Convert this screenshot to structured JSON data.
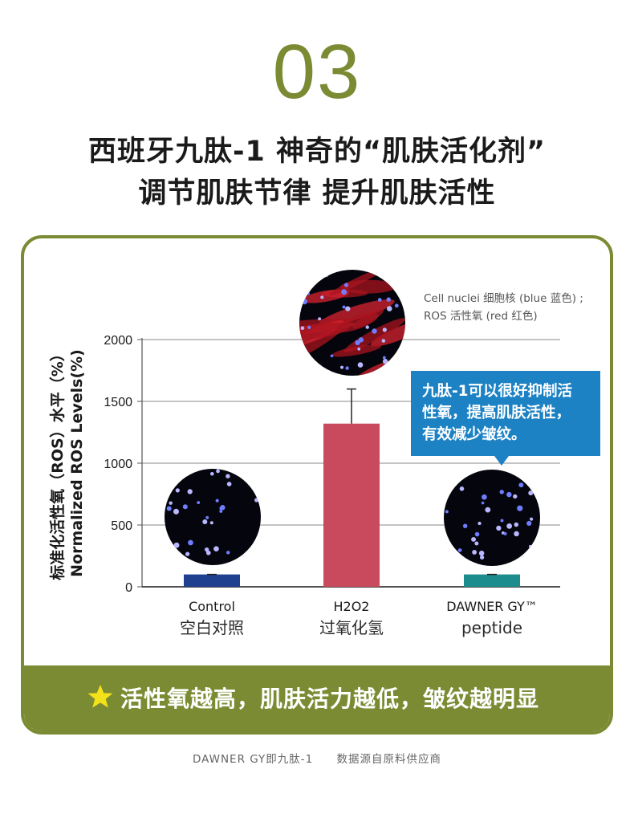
{
  "header": {
    "number": "03",
    "title_line1": "西班牙九肽-1  神奇的“肌肤活化剂”",
    "title_line2": "调节肌肤节律  提升肌肤活性"
  },
  "legend": {
    "line1": "Cell nuclei 细胞核 (blue 蓝色) ;",
    "line2": "ROS 活性氧 (red 红色)"
  },
  "callout": {
    "line1": "九肽-1可以很好抑制活",
    "line2": "性氧，提高肌肤活性，",
    "line3": "有效减少皱纹。"
  },
  "footer_note": "活性氧越高，肌肤活力越低，皱纹越明显",
  "source": {
    "left": "DAWNER GY即九肽-1",
    "right": "数据源自原料供应商"
  },
  "colors": {
    "accent": "#7a8b33",
    "control_bar": "#1f3f8f",
    "h2o2_bar": "#c94a5c",
    "peptide_bar": "#1d8c8c",
    "callout": "#1c82c4",
    "star": "#f3e21a"
  },
  "chart_data": {
    "type": "bar",
    "ylabel_cn": "标准化活性氧（ROS）水平（%）",
    "ylabel_en": "Normalized ROS Levels(%)",
    "ylim": [
      0,
      2000
    ],
    "yticks": [
      0,
      500,
      1000,
      1500,
      2000
    ],
    "grid": true,
    "categories": [
      {
        "en": "Control",
        "cn": "空白对照"
      },
      {
        "en": "H2O2",
        "cn": "过氧化氢"
      },
      {
        "en": "DAWNER GY™",
        "cn": "peptide"
      }
    ],
    "values": [
      100,
      1320,
      100
    ],
    "error_upper": [
      100,
      1600,
      100
    ]
  }
}
